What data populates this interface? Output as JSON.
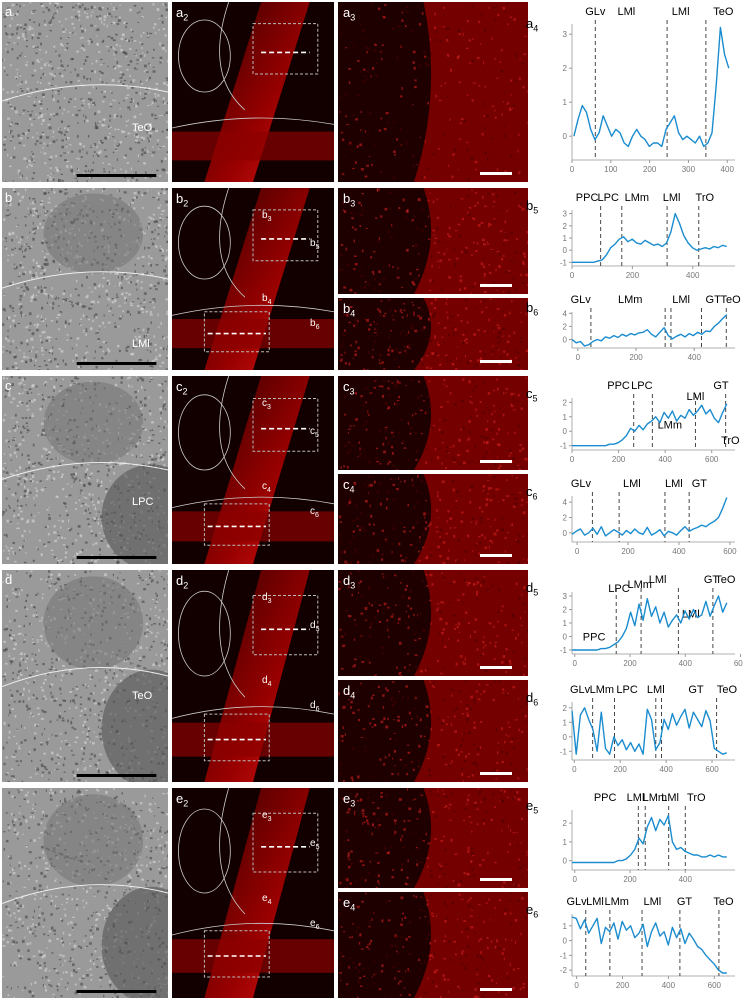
{
  "rows": [
    {
      "id": "a",
      "histology_label": "a",
      "histology_region": "TeO",
      "fluor_label": "a",
      "fluor_sub": "2",
      "zooms": [
        {
          "label": "a",
          "sub": "3"
        }
      ],
      "box_labels": [],
      "charts": [
        {
          "label": "a",
          "sub": "4",
          "regions": [
            {
              "name": "GLv",
              "x": 60
            },
            {
              "name": "LMl",
              "x": 140
            },
            {
              "name": "LMl",
              "x": 280
            },
            {
              "name": "TeO",
              "x": 390
            }
          ],
          "dividers": [
            60,
            245,
            345
          ],
          "xticks": [
            0,
            100,
            200,
            300,
            400
          ],
          "yticks": [
            0,
            1,
            2,
            3
          ],
          "xlim": [
            0,
            420
          ],
          "ylim": [
            -0.7,
            3.3
          ],
          "values": [
            0.0,
            0.5,
            0.9,
            0.7,
            0.2,
            -0.1,
            0.1,
            0.6,
            0.3,
            0.0,
            0.2,
            0.1,
            -0.2,
            -0.3,
            0.0,
            0.2,
            0.0,
            -0.1,
            -0.3,
            -0.2,
            -0.2,
            -0.3,
            0.2,
            0.4,
            0.6,
            0.1,
            -0.1,
            0.0,
            -0.1,
            -0.2,
            0.0,
            -0.3,
            -0.2,
            0.1,
            1.5,
            3.2,
            2.4,
            2.0
          ]
        }
      ]
    },
    {
      "id": "b",
      "histology_label": "b",
      "histology_region": "LMl",
      "fluor_label": "b",
      "fluor_sub": "2",
      "zooms": [
        {
          "label": "b",
          "sub": "3"
        },
        {
          "label": "b",
          "sub": "4"
        }
      ],
      "box_labels": [
        {
          "label": "b",
          "sub": "3"
        },
        {
          "label": "b",
          "sub": "5"
        },
        {
          "label": "b",
          "sub": "4"
        },
        {
          "label": "b",
          "sub": "6"
        }
      ],
      "charts": [
        {
          "label": "b",
          "sub": "5",
          "regions": [
            {
              "name": "PPC",
              "x": 50
            },
            {
              "name": "LPC",
              "x": 120
            },
            {
              "name": "LMm",
              "x": 215
            },
            {
              "name": "LMl",
              "x": 330
            },
            {
              "name": "TrO",
              "x": 440
            }
          ],
          "dividers": [
            95,
            165,
            315,
            420
          ],
          "xticks": [
            0,
            200,
            400
          ],
          "yticks": [
            -1,
            0,
            1,
            2,
            3
          ],
          "xlim": [
            0,
            540
          ],
          "ylim": [
            -1.3,
            3.3
          ],
          "values": [
            -1.0,
            -1.0,
            -1.0,
            -1.0,
            -1.0,
            -1.0,
            -0.9,
            -0.8,
            -0.4,
            0.2,
            0.5,
            0.9,
            1.1,
            0.7,
            0.9,
            0.6,
            0.5,
            0.8,
            0.6,
            0.4,
            0.5,
            0.3,
            0.6,
            1.5,
            3.0,
            2.2,
            1.2,
            0.6,
            0.2,
            0.0,
            0.1,
            0.2,
            0.1,
            0.3,
            0.2,
            0.4,
            0.3
          ]
        },
        {
          "label": "b",
          "sub": "6",
          "regions": [
            {
              "name": "GLv",
              "x": 10
            },
            {
              "name": "LMm",
              "x": 180
            },
            {
              "name": "LMl",
              "x": 355
            },
            {
              "name": "GT",
              "x": 465
            },
            {
              "name": "TeO",
              "x": 525
            }
          ],
          "dividers": [
            45,
            300,
            320,
            425,
            510
          ],
          "xticks": [
            0,
            200,
            400
          ],
          "yticks": [
            0,
            2,
            4
          ],
          "xlim": [
            -20,
            540
          ],
          "ylim": [
            -1.3,
            4.2
          ],
          "values": [
            0.0,
            -0.5,
            -0.3,
            -1.0,
            -0.8,
            -0.3,
            0.0,
            -0.2,
            0.4,
            0.2,
            0.6,
            0.3,
            0.8,
            0.5,
            0.9,
            0.7,
            1.0,
            1.1,
            1.5,
            0.8,
            0.4,
            1.1,
            1.8,
            0.6,
            0.1,
            0.5,
            0.8,
            0.4,
            0.9,
            0.6,
            1.1,
            0.8,
            1.3,
            1.2,
            2.0,
            2.5,
            3.2,
            3.8
          ]
        }
      ]
    },
    {
      "id": "c",
      "histology_label": "c",
      "histology_region": "LPC",
      "fluor_label": "c",
      "fluor_sub": "2",
      "zooms": [
        {
          "label": "c",
          "sub": "3"
        },
        {
          "label": "c",
          "sub": "4"
        }
      ],
      "box_labels": [
        {
          "label": "c",
          "sub": "3"
        },
        {
          "label": "c",
          "sub": "5"
        },
        {
          "label": "c",
          "sub": "4"
        },
        {
          "label": "c",
          "sub": "6"
        }
      ],
      "charts": [
        {
          "label": "c",
          "sub": "5",
          "regions": [
            {
              "name": "PPC",
              "x": 200
            },
            {
              "name": "LPC",
              "x": 300
            },
            {
              "name": "LMl",
              "x": 530
            },
            {
              "name": "GT",
              "x": 640
            },
            {
              "name": "LMm",
              "x": 420
            },
            {
              "name": "TrO",
              "x": 680
            }
          ],
          "dividers": [
            265,
            345,
            530,
            660
          ],
          "xticks": [
            0,
            200,
            400,
            600
          ],
          "yticks": [
            -1,
            0,
            1,
            2
          ],
          "xlim": [
            0,
            700
          ],
          "ylim": [
            -1.3,
            2.3
          ],
          "values": [
            -1.0,
            -1.0,
            -1.0,
            -1.0,
            -1.0,
            -1.0,
            -1.0,
            -1.0,
            -1.0,
            -0.9,
            -0.9,
            -0.8,
            -0.6,
            -0.3,
            0.2,
            0.0,
            0.4,
            0.1,
            0.5,
            0.7,
            1.0,
            0.6,
            1.3,
            0.9,
            1.4,
            0.7,
            1.1,
            0.9,
            1.5,
            1.1,
            1.4,
            1.8,
            1.2,
            1.5,
            0.9,
            0.6,
            1.3,
            1.9
          ]
        },
        {
          "label": "c",
          "sub": "6",
          "regions": [
            {
              "name": "GLv",
              "x": 15
            },
            {
              "name": "LMl",
              "x": 215
            },
            {
              "name": "LMl",
              "x": 380
            },
            {
              "name": "GT",
              "x": 480
            }
          ],
          "dividers": [
            60,
            165,
            345,
            440
          ],
          "xticks": [
            0,
            200,
            400,
            600
          ],
          "yticks": [
            0,
            2,
            4
          ],
          "xlim": [
            -20,
            620
          ],
          "ylim": [
            -1.2,
            4.8
          ],
          "values": [
            -0.2,
            0.2,
            0.5,
            -0.3,
            0.0,
            0.6,
            -0.2,
            0.8,
            -0.4,
            0.0,
            0.4,
            0.1,
            -0.3,
            0.3,
            -0.1,
            0.5,
            0.0,
            -0.2,
            0.7,
            -0.3,
            0.0,
            0.4,
            -0.4,
            0.2,
            0.0,
            -0.3,
            0.3,
            0.8,
            0.2,
            0.5,
            0.7,
            1.0,
            0.8,
            1.2,
            1.5,
            2.0,
            3.2,
            4.6
          ]
        }
      ]
    },
    {
      "id": "d",
      "histology_label": "d",
      "histology_region": "TeO",
      "fluor_label": "d",
      "fluor_sub": "2",
      "zooms": [
        {
          "label": "d",
          "sub": "3"
        },
        {
          "label": "d",
          "sub": "4"
        }
      ],
      "box_labels": [
        {
          "label": "d",
          "sub": "3"
        },
        {
          "label": "d",
          "sub": "5"
        },
        {
          "label": "d",
          "sub": "4"
        },
        {
          "label": "d",
          "sub": "6"
        }
      ],
      "charts": [
        {
          "label": "d",
          "sub": "5",
          "regions": [
            {
              "name": "PPC",
              "x": 70
            },
            {
              "name": "LPC",
              "x": 160
            },
            {
              "name": "LMm",
              "x": 235
            },
            {
              "name": "LMl",
              "x": 300
            },
            {
              "name": "LMl",
              "x": 420
            },
            {
              "name": "GT",
              "x": 495
            },
            {
              "name": "TeO",
              "x": 545
            }
          ],
          "dividers": [
            150,
            240,
            375,
            500
          ],
          "xticks": [
            0,
            200,
            400,
            600
          ],
          "yticks": [
            -1,
            0,
            1,
            2,
            3
          ],
          "xlim": [
            -10,
            580
          ],
          "ylim": [
            -1.3,
            3.3
          ],
          "values": [
            -1.0,
            -1.0,
            -1.0,
            -1.0,
            -1.0,
            -1.0,
            -1.0,
            -0.9,
            -0.9,
            -0.8,
            -0.6,
            -0.4,
            0.0,
            0.6,
            1.8,
            0.8,
            2.4,
            1.2,
            2.8,
            1.5,
            2.2,
            1.0,
            1.8,
            0.7,
            1.2,
            1.6,
            1.0,
            1.9,
            1.3,
            2.0,
            1.4,
            1.6,
            2.6,
            1.5,
            2.3,
            3.0,
            1.8,
            2.5
          ]
        },
        {
          "label": "d",
          "sub": "6",
          "regions": [
            {
              "name": "GLv",
              "x": 25
            },
            {
              "name": "LMm",
              "x": 120
            },
            {
              "name": "LPC",
              "x": 230
            },
            {
              "name": "LMl",
              "x": 355
            },
            {
              "name": "GT",
              "x": 530
            },
            {
              "name": "TeO",
              "x": 665
            }
          ],
          "dividers": [
            80,
            175,
            355,
            380,
            620
          ],
          "xticks": [
            0,
            200,
            400,
            600
          ],
          "yticks": [
            -1,
            0,
            1,
            2
          ],
          "xlim": [
            -10,
            700
          ],
          "ylim": [
            -1.6,
            2.4
          ],
          "values": [
            1.8,
            -1.2,
            1.5,
            2.0,
            1.2,
            0.5,
            -1.0,
            1.7,
            -0.8,
            -1.2,
            0.0,
            -0.6,
            -0.2,
            -0.9,
            -0.4,
            -1.0,
            -0.5,
            -1.2,
            1.9,
            1.2,
            -0.9,
            -0.4,
            1.2,
            0.5,
            1.6,
            0.8,
            1.4,
            1.9,
            0.6,
            1.7,
            1.2,
            0.7,
            1.8,
            1.1,
            -0.8,
            -1.0,
            -1.2,
            -1.1
          ]
        }
      ]
    },
    {
      "id": "e",
      "histology_label": "",
      "histology_region": "",
      "fluor_label": "e",
      "fluor_sub": "2",
      "zooms": [
        {
          "label": "e",
          "sub": "3"
        },
        {
          "label": "e",
          "sub": "4"
        }
      ],
      "box_labels": [
        {
          "label": "e",
          "sub": "3"
        },
        {
          "label": "e",
          "sub": "5"
        },
        {
          "label": "e",
          "sub": "4"
        },
        {
          "label": "e",
          "sub": "6"
        }
      ],
      "charts": [
        {
          "label": "e",
          "sub": "5",
          "regions": [
            {
              "name": "PPC",
              "x": 110
            },
            {
              "name": "LMl",
              "x": 220
            },
            {
              "name": "LMm",
              "x": 290
            },
            {
              "name": "LMl",
              "x": 345
            },
            {
              "name": "TrO",
              "x": 440
            }
          ],
          "dividers": [
            230,
            255,
            340,
            400
          ],
          "xticks": [
            0,
            200,
            400
          ],
          "yticks": [
            0,
            1,
            2
          ],
          "xlim": [
            -10,
            580
          ],
          "ylim": [
            -0.5,
            2.7
          ],
          "values": [
            -0.1,
            -0.1,
            -0.1,
            -0.1,
            -0.1,
            -0.1,
            -0.1,
            -0.1,
            -0.1,
            -0.1,
            -0.1,
            0.0,
            0.0,
            0.1,
            0.3,
            0.6,
            1.2,
            0.9,
            1.8,
            2.3,
            1.6,
            2.2,
            1.9,
            2.4,
            1.0,
            0.6,
            0.7,
            0.5,
            0.4,
            0.3,
            0.3,
            0.2,
            0.2,
            0.3,
            0.2,
            0.3,
            0.2,
            0.2
          ]
        },
        {
          "label": "e",
          "sub": "6",
          "regions": [
            {
              "name": "GLv",
              "x": 0
            },
            {
              "name": "LMl",
              "x": 80
            },
            {
              "name": "LMm",
              "x": 175
            },
            {
              "name": "LMl",
              "x": 330
            },
            {
              "name": "GT",
              "x": 470
            },
            {
              "name": "TeO",
              "x": 640
            }
          ],
          "dividers": [
            40,
            145,
            285,
            450,
            620
          ],
          "xticks": [
            0,
            200,
            400,
            600
          ],
          "yticks": [
            -2,
            -1,
            0,
            1
          ],
          "xlim": [
            -20,
            690
          ],
          "ylim": [
            -2.4,
            1.8
          ],
          "values": [
            1.6,
            1.5,
            0.8,
            1.4,
            0.5,
            1.0,
            1.5,
            -0.2,
            0.9,
            0.6,
            1.2,
            0.1,
            1.3,
            0.7,
            1.0,
            0.2,
            0.5,
            1.1,
            -0.4,
            0.6,
            1.2,
            0.3,
            0.6,
            -0.3,
            0.9,
            0.2,
            0.8,
            -0.2,
            0.5,
            0.1,
            -0.4,
            -0.6,
            -1.0,
            -1.3,
            -1.6,
            -2.0,
            -2.2,
            -2.2
          ]
        }
      ]
    }
  ]
}
